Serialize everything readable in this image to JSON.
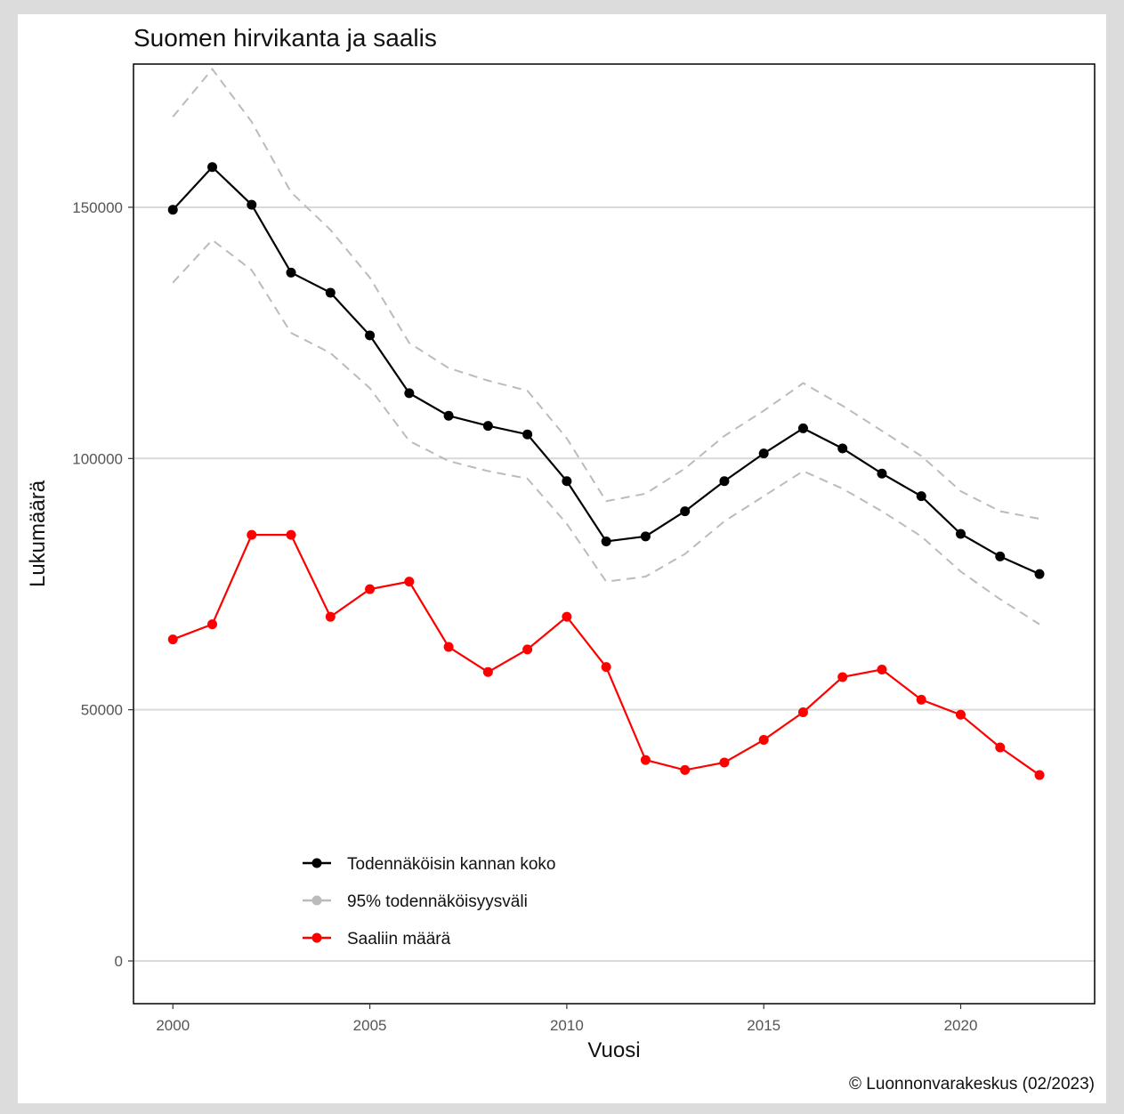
{
  "chart_data": {
    "type": "line",
    "title": "Suomen hirvikanta ja saalis",
    "xlabel": "Vuosi",
    "ylabel": "Lukumäärä",
    "caption": "© Luonnonvarakeskus (02/2023)",
    "x": [
      2000,
      2001,
      2002,
      2003,
      2004,
      2005,
      2006,
      2007,
      2008,
      2009,
      2010,
      2011,
      2012,
      2013,
      2014,
      2015,
      2016,
      2017,
      2018,
      2019,
      2020,
      2021,
      2022
    ],
    "xlim": [
      1999,
      2023.4
    ],
    "ylim": [
      -8500,
      178500
    ],
    "xticks": [
      2000,
      2005,
      2010,
      2015,
      2020
    ],
    "xtick_labels": [
      "2000",
      "2005",
      "2010",
      "2015",
      "2020"
    ],
    "yticks": [
      0,
      50000,
      100000,
      150000
    ],
    "ytick_labels": [
      "0",
      "50000",
      "100000",
      "150000"
    ],
    "grid": "horizontal",
    "legend_position": "bottom-left",
    "series": [
      {
        "name": "Todennäköisin kannan koko",
        "color": "#000000",
        "style": "solid",
        "markers": true,
        "values": [
          149500,
          158000,
          150500,
          137000,
          133000,
          124500,
          113000,
          108500,
          106500,
          104800,
          95500,
          83500,
          84500,
          89500,
          95500,
          101000,
          106000,
          102000,
          97000,
          92500,
          85000,
          80500,
          77000
        ]
      },
      {
        "name": "95% todennäköisyysväli",
        "color": "#bbbbbb",
        "style": "dashed",
        "markers": false,
        "values": [
          168000,
          177500,
          167000,
          153000,
          145500,
          136000,
          123000,
          118000,
          115500,
          113500,
          104000,
          91500,
          93000,
          98000,
          104500,
          109500,
          115000,
          110500,
          105500,
          100500,
          93500,
          89500,
          88000
        ]
      },
      {
        "name": "",
        "color": "#bbbbbb",
        "style": "dashed",
        "markers": false,
        "values": [
          135000,
          143500,
          137500,
          125000,
          121000,
          114000,
          103500,
          99500,
          97500,
          96000,
          87000,
          75500,
          76500,
          81000,
          87500,
          92500,
          97500,
          94000,
          89500,
          84500,
          77500,
          72000,
          67000
        ]
      },
      {
        "name": "Saaliin määrä",
        "color": "#ff0000",
        "style": "solid",
        "markers": true,
        "values": [
          64000,
          67000,
          84800,
          84800,
          68500,
          74000,
          75500,
          62500,
          57500,
          62000,
          68500,
          58500,
          40000,
          38000,
          39500,
          44000,
          49500,
          56500,
          58000,
          52000,
          49000,
          42500,
          37000
        ]
      }
    ]
  }
}
